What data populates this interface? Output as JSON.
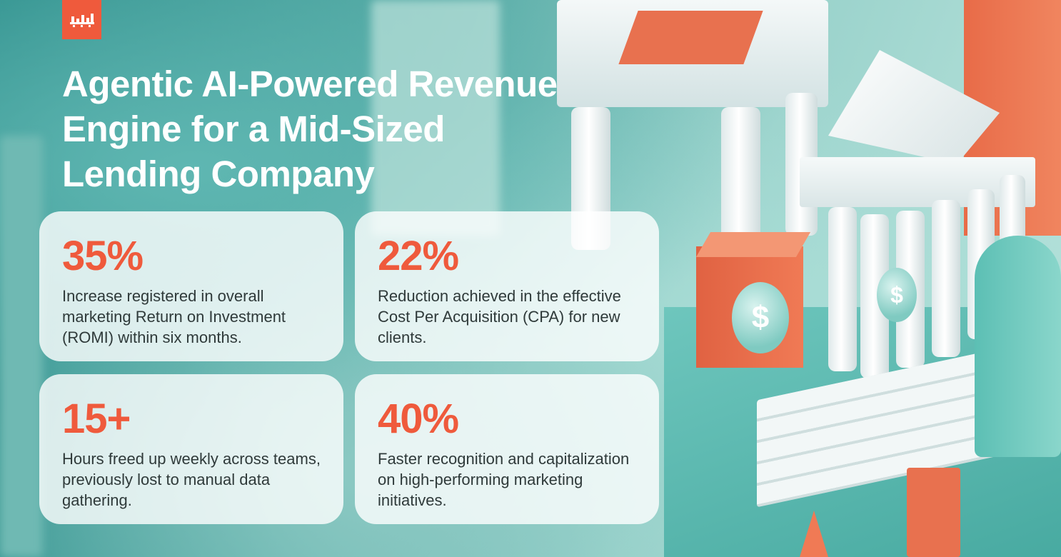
{
  "title": {
    "line1": "Agentic AI-Powered Revenue",
    "line2": "Engine for a Mid-Sized",
    "line3": "Lending Company"
  },
  "colors": {
    "accent": "#ef5a3c",
    "teal": "#3f9d9a",
    "card": "#ffffff"
  },
  "stats": [
    {
      "value": "35%",
      "text": "Increase registered in overall marketing Return on Investment (ROMI) within six months."
    },
    {
      "value": "22%",
      "text": "Reduction achieved in the effective Cost Per Acquisition (CPA) for new clients."
    },
    {
      "value": "15+",
      "text": "Hours freed up weekly across teams, previously lost to manual data gathering."
    },
    {
      "value": "40%",
      "text": "Faster recognition and capitalization on high-performing marketing initiatives."
    }
  ],
  "illustration": {
    "coin_symbol": "$"
  }
}
